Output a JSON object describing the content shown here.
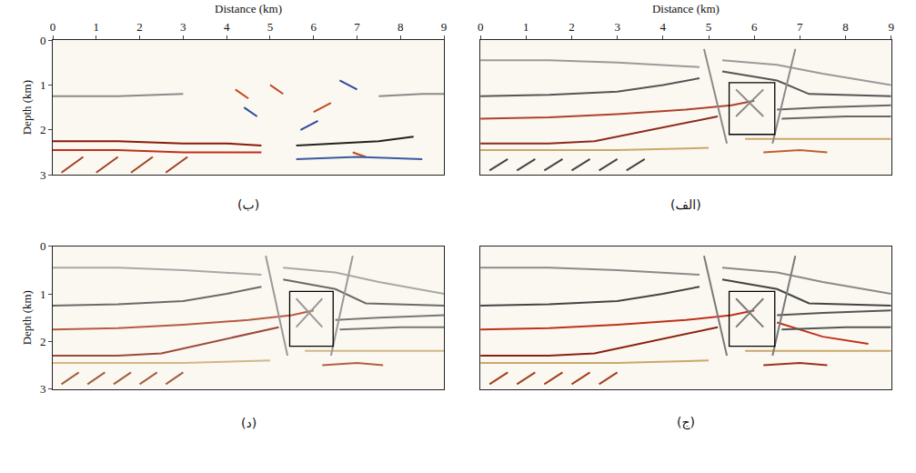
{
  "chart_data": [
    {
      "type": "line",
      "title": "(ب)",
      "x_label": "Distance (km)",
      "y_label": "Depth (km)",
      "xlim": [
        0,
        9
      ],
      "ylim": [
        3,
        0
      ],
      "xticks": [
        0,
        1,
        2,
        3,
        4,
        5,
        6,
        7,
        8,
        9
      ],
      "yticks": [
        0,
        1,
        2,
        3
      ],
      "tick_labels": true,
      "series": [
        {
          "color": "#8a8a8a",
          "x": [
            0,
            1.5,
            3,
            null,
            7.5,
            8.5,
            9
          ],
          "y": [
            1.25,
            1.25,
            1.2,
            null,
            1.25,
            1.2,
            1.2
          ]
        },
        {
          "color": "#8b1a0a",
          "x": [
            0,
            1.5,
            3,
            4,
            4.8
          ],
          "y": [
            2.25,
            2.25,
            2.3,
            2.3,
            2.35
          ]
        },
        {
          "color": "#c0301a",
          "x": [
            0,
            1.5,
            3,
            4.8
          ],
          "y": [
            2.45,
            2.45,
            2.5,
            2.5
          ]
        },
        {
          "color": "#222222",
          "x": [
            5.6,
            6.5,
            7.5,
            8.3
          ],
          "y": [
            2.35,
            2.3,
            2.25,
            2.15
          ]
        },
        {
          "color": "#c04a20",
          "x": [
            4.2,
            4.5,
            null,
            5.0,
            5.3,
            null,
            6.0,
            6.4,
            null,
            6.9,
            7.2
          ],
          "y": [
            1.1,
            1.3,
            null,
            1.0,
            1.2,
            null,
            1.6,
            1.4,
            null,
            2.5,
            2.6
          ]
        },
        {
          "color": "#2a4a9a",
          "x": [
            4.4,
            4.7,
            null,
            6.6,
            7.0,
            null,
            5.7,
            6.1
          ],
          "y": [
            1.5,
            1.7,
            null,
            0.9,
            1.1,
            null,
            2.0,
            1.8
          ]
        },
        {
          "color": "#a04020",
          "x": [
            0.2,
            0.7,
            null,
            1.0,
            1.5,
            null,
            1.8,
            2.3,
            null,
            2.6,
            3.1
          ],
          "y": [
            2.95,
            2.6,
            null,
            2.95,
            2.6,
            null,
            2.95,
            2.6,
            null,
            2.95,
            2.6
          ]
        },
        {
          "color": "#3a5aa0",
          "x": [
            5.6,
            7,
            8.5
          ],
          "y": [
            2.65,
            2.6,
            2.65
          ]
        }
      ]
    },
    {
      "type": "line",
      "title": "(الف)",
      "x_label": "Distance (km)",
      "xlim": [
        0,
        9
      ],
      "ylim": [
        3,
        0
      ],
      "xticks": [
        0,
        1,
        2,
        3,
        4,
        5,
        6,
        7,
        8,
        9
      ],
      "yticks": [
        0,
        1,
        2,
        3
      ],
      "tick_labels": "x",
      "box": {
        "x": [
          5.45,
          6.45
        ],
        "y": [
          0.95,
          2.1
        ]
      },
      "series": [
        {
          "color": "#9a9a9a",
          "x": [
            0,
            1.5,
            3,
            4,
            4.8,
            null,
            5.3,
            6.5,
            7.5,
            9
          ],
          "y": [
            0.45,
            0.45,
            0.5,
            0.55,
            0.6,
            null,
            0.45,
            0.55,
            0.75,
            1.0
          ]
        },
        {
          "color": "#555555",
          "x": [
            0,
            1.5,
            3,
            4,
            4.8,
            null,
            5.3,
            6.5,
            7.2,
            9
          ],
          "y": [
            1.25,
            1.22,
            1.15,
            1.0,
            0.85,
            null,
            0.7,
            0.9,
            1.2,
            1.25
          ]
        },
        {
          "color": "#b0402a",
          "x": [
            0,
            1.5,
            3,
            4.5,
            5.5,
            6.0
          ],
          "y": [
            1.75,
            1.72,
            1.65,
            1.55,
            1.45,
            1.35
          ]
        },
        {
          "color": "#8c2a1c",
          "x": [
            0,
            1.5,
            2.5,
            3.5,
            4.5,
            5.2
          ],
          "y": [
            2.3,
            2.3,
            2.25,
            2.05,
            1.85,
            1.7
          ]
        },
        {
          "color": "#666666",
          "x": [
            6.5,
            7.5,
            9,
            null,
            6.6,
            8,
            9
          ],
          "y": [
            1.55,
            1.5,
            1.45,
            null,
            1.75,
            1.7,
            1.7
          ]
        },
        {
          "color": "#c9a86a",
          "x": [
            0,
            3,
            5,
            null,
            5.8,
            7,
            9
          ],
          "y": [
            2.45,
            2.45,
            2.4,
            null,
            2.2,
            2.2,
            2.2
          ]
        },
        {
          "color": "#444444",
          "x": [
            0.2,
            0.6,
            null,
            0.8,
            1.2,
            null,
            1.4,
            1.8,
            null,
            2.0,
            2.4,
            null,
            2.6,
            3.0,
            null,
            3.2,
            3.6
          ],
          "y": [
            2.9,
            2.65,
            null,
            2.9,
            2.65,
            null,
            2.9,
            2.65,
            null,
            2.9,
            2.65,
            null,
            2.9,
            2.65,
            null,
            2.9,
            2.65
          ]
        },
        {
          "color": "#8a8a8a",
          "x": [
            4.9,
            5.4,
            null,
            6.9,
            6.4,
            null,
            5.6,
            6.2,
            null,
            6.2,
            5.6
          ],
          "y": [
            0.2,
            2.3,
            null,
            0.2,
            2.3,
            null,
            1.1,
            1.7,
            null,
            1.1,
            1.7
          ]
        },
        {
          "color": "#c06030",
          "x": [
            6.2,
            7,
            7.6
          ],
          "y": [
            2.5,
            2.45,
            2.5
          ]
        }
      ]
    },
    {
      "type": "line",
      "title": "(د)",
      "y_label": "Depth (km)",
      "xlim": [
        0,
        9
      ],
      "ylim": [
        3,
        0
      ],
      "xticks": [
        0,
        1,
        2,
        3,
        4,
        5,
        6,
        7,
        8,
        9
      ],
      "yticks": [
        0,
        1,
        2,
        3
      ],
      "tick_labels": "y",
      "box": {
        "x": [
          5.45,
          6.45
        ],
        "y": [
          0.95,
          2.1
        ]
      },
      "series": [
        {
          "color": "#a8a8a8",
          "x": [
            0,
            1.5,
            3,
            4,
            4.8,
            null,
            5.3,
            6.5,
            7.5,
            9
          ],
          "y": [
            0.45,
            0.45,
            0.5,
            0.55,
            0.6,
            null,
            0.45,
            0.55,
            0.75,
            1.0
          ]
        },
        {
          "color": "#6a6a6a",
          "x": [
            0,
            1.5,
            3,
            4,
            4.8,
            null,
            5.3,
            6.5,
            7.2,
            9
          ],
          "y": [
            1.25,
            1.22,
            1.15,
            1.0,
            0.85,
            null,
            0.7,
            0.9,
            1.2,
            1.25
          ]
        },
        {
          "color": "#b85a40",
          "x": [
            0,
            1.5,
            3,
            4.5,
            5.5,
            6.0
          ],
          "y": [
            1.75,
            1.72,
            1.65,
            1.55,
            1.45,
            1.35
          ]
        },
        {
          "color": "#9a4a3a",
          "x": [
            0,
            1.5,
            2.5,
            3.5,
            4.5,
            5.2
          ],
          "y": [
            2.3,
            2.3,
            2.25,
            2.05,
            1.85,
            1.7
          ]
        },
        {
          "color": "#777777",
          "x": [
            6.5,
            7.5,
            9,
            null,
            6.6,
            8,
            9
          ],
          "y": [
            1.55,
            1.5,
            1.45,
            null,
            1.75,
            1.7,
            1.7
          ]
        },
        {
          "color": "#d0b888",
          "x": [
            0,
            3,
            5,
            null,
            5.8,
            7,
            9
          ],
          "y": [
            2.45,
            2.45,
            2.4,
            null,
            2.2,
            2.2,
            2.2
          ]
        },
        {
          "color": "#a06040",
          "x": [
            0.2,
            0.6,
            null,
            0.8,
            1.2,
            null,
            1.4,
            1.8,
            null,
            2.0,
            2.4,
            null,
            2.6,
            3.0
          ],
          "y": [
            2.9,
            2.65,
            null,
            2.9,
            2.65,
            null,
            2.9,
            2.65,
            null,
            2.9,
            2.65,
            null,
            2.9,
            2.65
          ]
        },
        {
          "color": "#9a9a9a",
          "x": [
            4.9,
            5.4,
            null,
            6.9,
            6.4,
            null,
            5.6,
            6.2,
            null,
            6.2,
            5.6
          ],
          "y": [
            0.2,
            2.3,
            null,
            0.2,
            2.3,
            null,
            1.1,
            1.7,
            null,
            1.1,
            1.7
          ]
        },
        {
          "color": "#b06040",
          "x": [
            6.2,
            7,
            7.6
          ],
          "y": [
            2.5,
            2.45,
            2.5
          ]
        }
      ]
    },
    {
      "type": "line",
      "title": "(ج)",
      "xlim": [
        0,
        9
      ],
      "ylim": [
        3,
        0
      ],
      "xticks": [
        0,
        1,
        2,
        3,
        4,
        5,
        6,
        7,
        8,
        9
      ],
      "yticks": [
        0,
        1,
        2,
        3
      ],
      "tick_labels": false,
      "box": {
        "x": [
          5.45,
          6.45
        ],
        "y": [
          0.95,
          2.1
        ]
      },
      "series": [
        {
          "color": "#8a8a8a",
          "x": [
            0,
            1.5,
            3,
            4,
            4.8,
            null,
            5.3,
            6.5,
            7.5,
            9
          ],
          "y": [
            0.45,
            0.45,
            0.5,
            0.55,
            0.6,
            null,
            0.45,
            0.55,
            0.75,
            1.0
          ]
        },
        {
          "color": "#444444",
          "x": [
            0,
            1.5,
            3,
            4,
            4.8,
            null,
            5.3,
            6.5,
            7.2,
            9
          ],
          "y": [
            1.25,
            1.22,
            1.15,
            1.0,
            0.85,
            null,
            0.7,
            0.9,
            1.2,
            1.25
          ]
        },
        {
          "color": "#c0301a",
          "x": [
            0,
            1.5,
            3,
            4.5,
            5.5,
            6.0
          ],
          "y": [
            1.75,
            1.72,
            1.65,
            1.55,
            1.45,
            1.35
          ]
        },
        {
          "color": "#8c2010",
          "x": [
            0,
            1.5,
            2.5,
            3.5,
            4.5,
            5.2
          ],
          "y": [
            2.3,
            2.3,
            2.25,
            2.05,
            1.85,
            1.7
          ]
        },
        {
          "color": "#c0301a",
          "x": [
            6.5,
            7.5,
            8.5
          ],
          "y": [
            1.6,
            1.9,
            2.05
          ]
        },
        {
          "color": "#555555",
          "x": [
            6.5,
            7.5,
            9,
            null,
            6.6,
            8,
            9
          ],
          "y": [
            1.45,
            1.4,
            1.35,
            null,
            1.75,
            1.7,
            1.7
          ]
        },
        {
          "color": "#c9a86a",
          "x": [
            0,
            3,
            5,
            null,
            5.8,
            7,
            9
          ],
          "y": [
            2.45,
            2.45,
            2.4,
            null,
            2.2,
            2.2,
            2.2
          ]
        },
        {
          "color": "#a04020",
          "x": [
            0.2,
            0.6,
            null,
            0.8,
            1.2,
            null,
            1.4,
            1.8,
            null,
            2.0,
            2.4,
            null,
            2.6,
            3.0
          ],
          "y": [
            2.9,
            2.65,
            null,
            2.9,
            2.65,
            null,
            2.9,
            2.65,
            null,
            2.9,
            2.65,
            null,
            2.9,
            2.65
          ]
        },
        {
          "color": "#7a7a7a",
          "x": [
            4.9,
            5.4,
            null,
            6.9,
            6.4,
            null,
            5.6,
            6.2,
            null,
            6.2,
            5.6
          ],
          "y": [
            0.2,
            2.3,
            null,
            0.2,
            2.3,
            null,
            1.1,
            1.7,
            null,
            1.1,
            1.7
          ]
        },
        {
          "color": "#a03020",
          "x": [
            6.2,
            7,
            7.6
          ],
          "y": [
            2.5,
            2.45,
            2.5
          ]
        }
      ]
    }
  ]
}
